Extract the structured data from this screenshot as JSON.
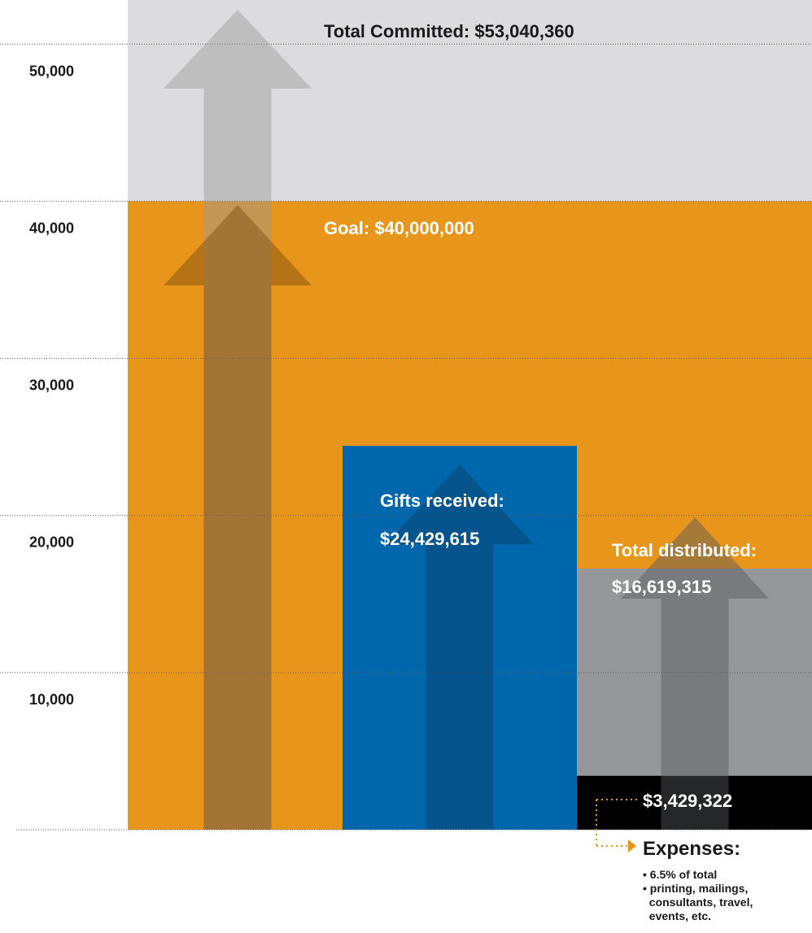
{
  "chart_data": {
    "type": "bar",
    "units_note": "values in thousands of dollars",
    "y_ticks": [
      "10,000",
      "20,000",
      "30,000",
      "40,000",
      "50,000"
    ],
    "y_tick_values": [
      10000,
      20000,
      30000,
      40000,
      50000
    ],
    "ylim": [
      0,
      54000
    ],
    "grid": true,
    "background_bands": [
      {
        "key": "committed",
        "label": "Total Committed: $53,040,360",
        "value": 53040.36,
        "color": "#dcdcde"
      },
      {
        "key": "goal",
        "label": "Goal: $40,000,000",
        "value": 40000,
        "color": "#e8951c"
      }
    ],
    "bars": [
      {
        "key": "gifts",
        "label_line1": "Gifts received:",
        "label_line2": "$24,429,615",
        "value": 24429.615,
        "color": "#0067ad"
      },
      {
        "key": "distributed",
        "label_line1": "Total distributed:",
        "label_line2": "$16,619,315",
        "value": 16619.315,
        "color": "#96979b"
      },
      {
        "key": "expenses",
        "label": "$3,429,322",
        "value": 3429.322,
        "color": "#000000"
      }
    ],
    "expenses_note": {
      "heading": "Expenses:",
      "bullets": [
        "• 6.5% of total",
        "• printing, mailings,",
        "  consultants, travel,",
        "  events, etc."
      ]
    },
    "accent_color": "#e8951c"
  }
}
